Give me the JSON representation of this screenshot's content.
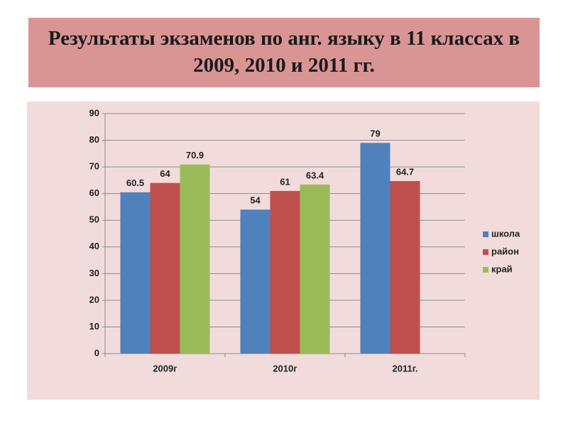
{
  "chart_data": {
    "type": "bar",
    "title": "Результаты экзаменов по анг. языку в 11 классах в 2009, 2010 и 2011 гг.",
    "categories": [
      "2009г",
      "2010г",
      "2011г."
    ],
    "series": [
      {
        "name": "школа",
        "color": "#4f81bd",
        "values": [
          60.5,
          54,
          79
        ]
      },
      {
        "name": "район",
        "color": "#c0504d",
        "values": [
          64,
          61,
          64.7
        ]
      },
      {
        "name": "край",
        "color": "#9bbb59",
        "values": [
          70.9,
          63.4,
          null
        ]
      }
    ],
    "ylim": [
      0,
      90
    ],
    "yticks": [
      0,
      10,
      20,
      30,
      40,
      50,
      60,
      70,
      80,
      90
    ],
    "grid": true,
    "legend": "right"
  }
}
